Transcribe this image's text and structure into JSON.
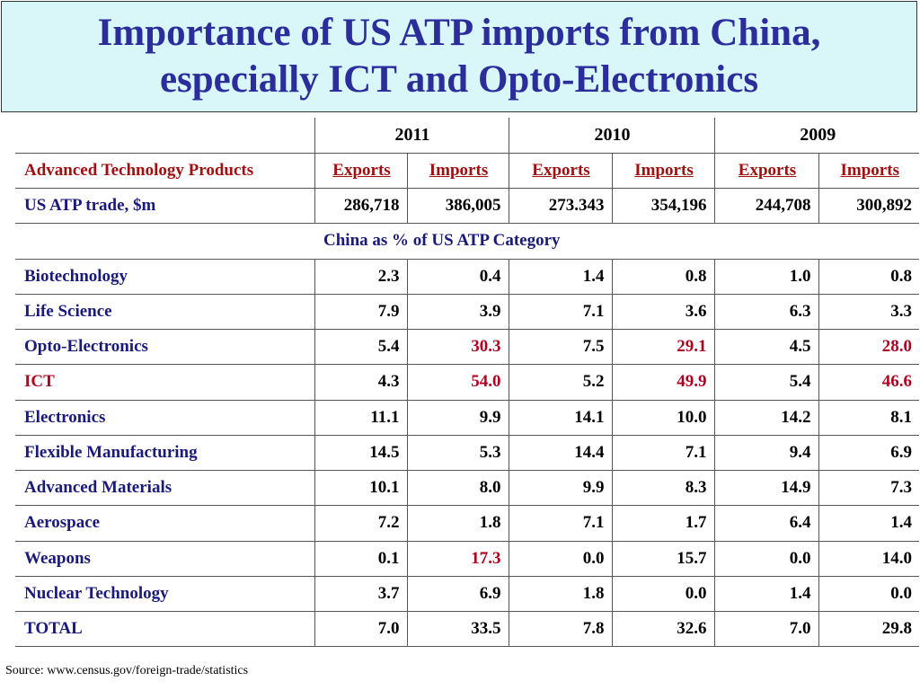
{
  "title": {
    "line1": "Importance of US ATP imports from China,",
    "line2": "especially ICT and Opto-Electronics"
  },
  "years": [
    "2011",
    "2010",
    "2009"
  ],
  "subheader": {
    "label": "Advanced Technology Products",
    "exports": "Exports",
    "imports": "Imports"
  },
  "trade": {
    "label": "US ATP trade, $m",
    "values": [
      "286,718",
      "386,005",
      "273.343",
      "354,196",
      "244,708",
      "300,892"
    ]
  },
  "section_label": "China as % of US ATP Category",
  "rows": [
    {
      "label": "Biotechnology",
      "values": [
        "2.3",
        "0.4",
        "1.4",
        "0.8",
        "1.0",
        "0.8"
      ]
    },
    {
      "label": "Life Science",
      "values": [
        "7.9",
        "3.9",
        "7.1",
        "3.6",
        "6.3",
        "3.3"
      ]
    },
    {
      "label": "Opto-Electronics",
      "values": [
        "5.4",
        "30.3",
        "7.5",
        "29.1",
        "4.5",
        "28.0"
      ]
    },
    {
      "label": "ICT",
      "values": [
        "4.3",
        "54.0",
        "5.2",
        "49.9",
        "5.4",
        "46.6"
      ]
    },
    {
      "label": "Electronics",
      "values": [
        "11.1",
        "9.9",
        "14.1",
        "10.0",
        "14.2",
        "8.1"
      ]
    },
    {
      "label": "Flexible Manufacturing",
      "values": [
        "14.5",
        "5.3",
        "14.4",
        "7.1",
        "9.4",
        "6.9"
      ]
    },
    {
      "label": "Advanced Materials",
      "values": [
        "10.1",
        "8.0",
        "9.9",
        "8.3",
        "14.9",
        "7.3"
      ]
    },
    {
      "label": "Aerospace",
      "values": [
        "7.2",
        "1.8",
        "7.1",
        "1.7",
        "6.4",
        "1.4"
      ]
    },
    {
      "label": "Weapons",
      "values": [
        "0.1",
        "17.3",
        "0.0",
        "15.7",
        "0.0",
        "14.0"
      ]
    },
    {
      "label": "Nuclear Technology",
      "values": [
        "3.7",
        "6.9",
        "1.8",
        "0.0",
        "1.4",
        "0.0"
      ]
    },
    {
      "label": "TOTAL",
      "values": [
        "7.0",
        "33.5",
        "7.8",
        "32.6",
        "7.0",
        "29.8"
      ]
    }
  ],
  "colors": {
    "title_text": "#2b2d9b",
    "title_background": "#d9f7f9",
    "highlight": "#b00020",
    "label_text": "#1a1a7a"
  },
  "source": "Source: www.census.gov/foreign-trade/statistics"
}
